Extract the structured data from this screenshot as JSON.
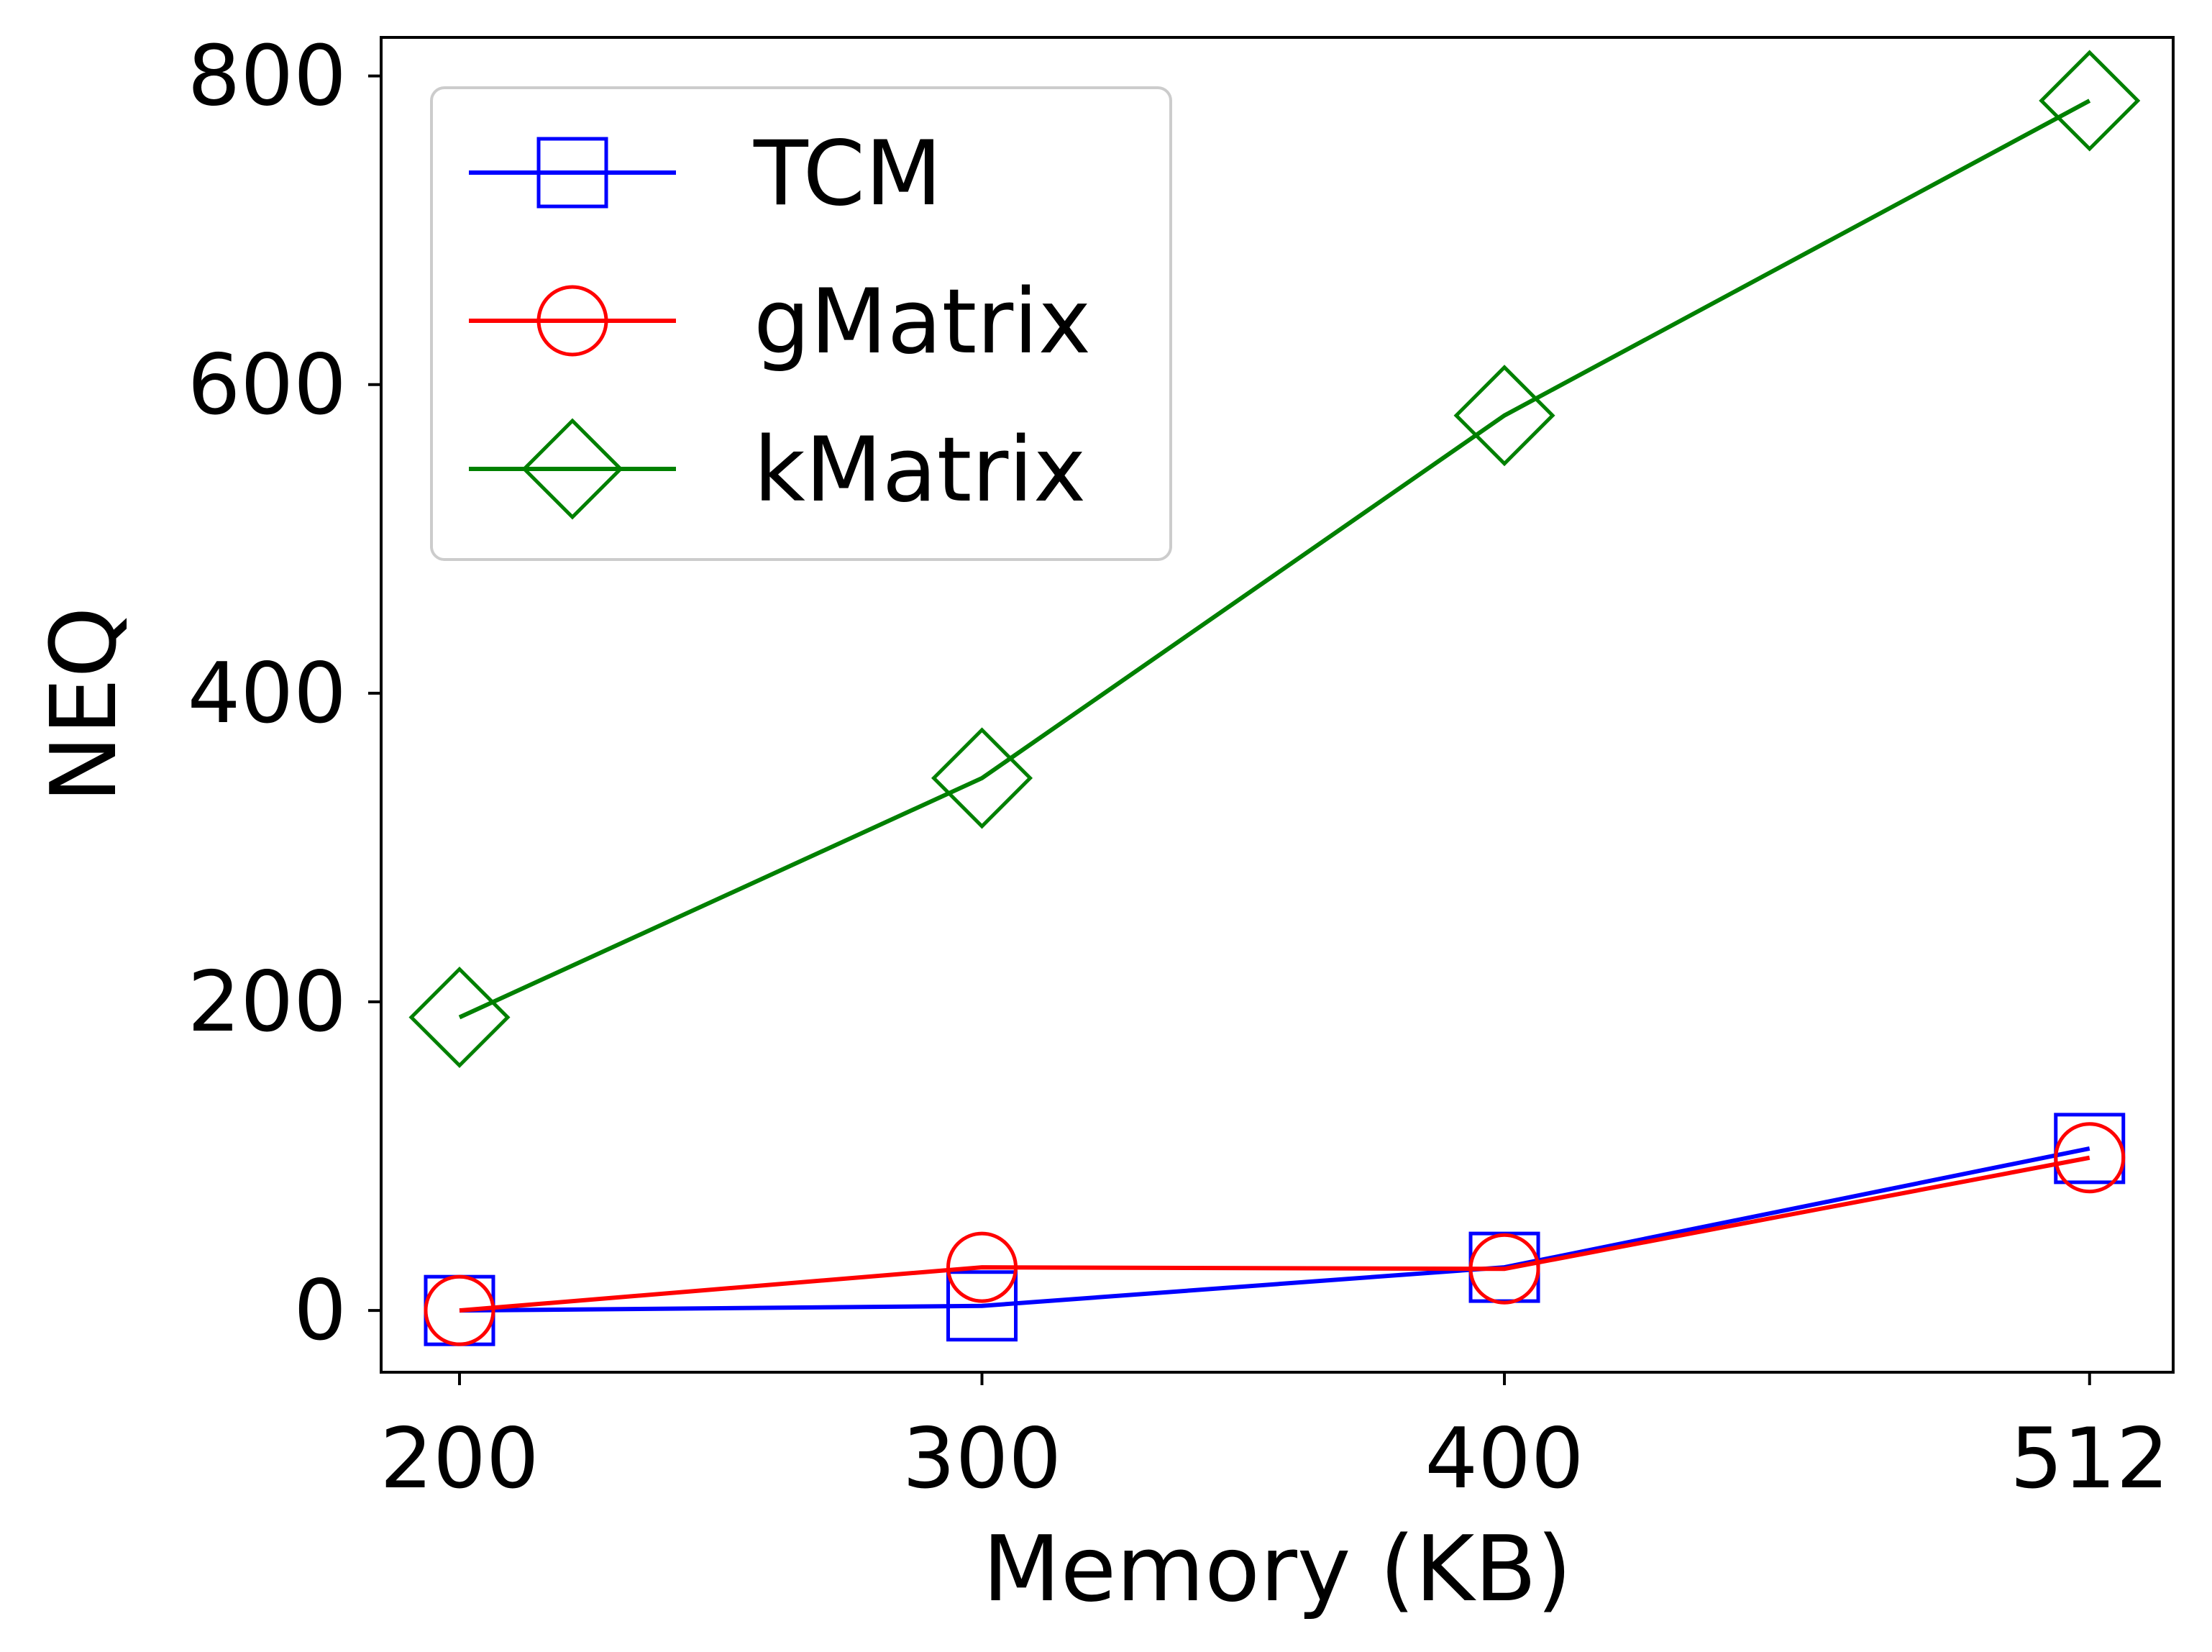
{
  "chart_data": {
    "type": "line",
    "title": "",
    "xlabel": "Memory (KB)",
    "ylabel": "NEQ",
    "categories": [
      "200",
      "300",
      "400",
      "512"
    ],
    "x": [
      200,
      300,
      400,
      512
    ],
    "xlim": [
      185,
      528
    ],
    "ylim": [
      -40,
      825
    ],
    "yticks": [
      0,
      200,
      400,
      600,
      800
    ],
    "ytick_labels": [
      "0",
      "200",
      "400",
      "600",
      "800"
    ],
    "grid": false,
    "legend_position": "top-left",
    "series": [
      {
        "name": "TCM",
        "color": "#0000ff",
        "marker": "square",
        "values": [
          0,
          3,
          28,
          105
        ]
      },
      {
        "name": "gMatrix",
        "color": "#ff0000",
        "marker": "circle",
        "values": [
          0,
          28,
          27,
          99
        ]
      },
      {
        "name": "kMatrix",
        "color": "#008000",
        "marker": "diamond",
        "values": [
          190,
          345,
          580,
          784
        ]
      }
    ]
  }
}
